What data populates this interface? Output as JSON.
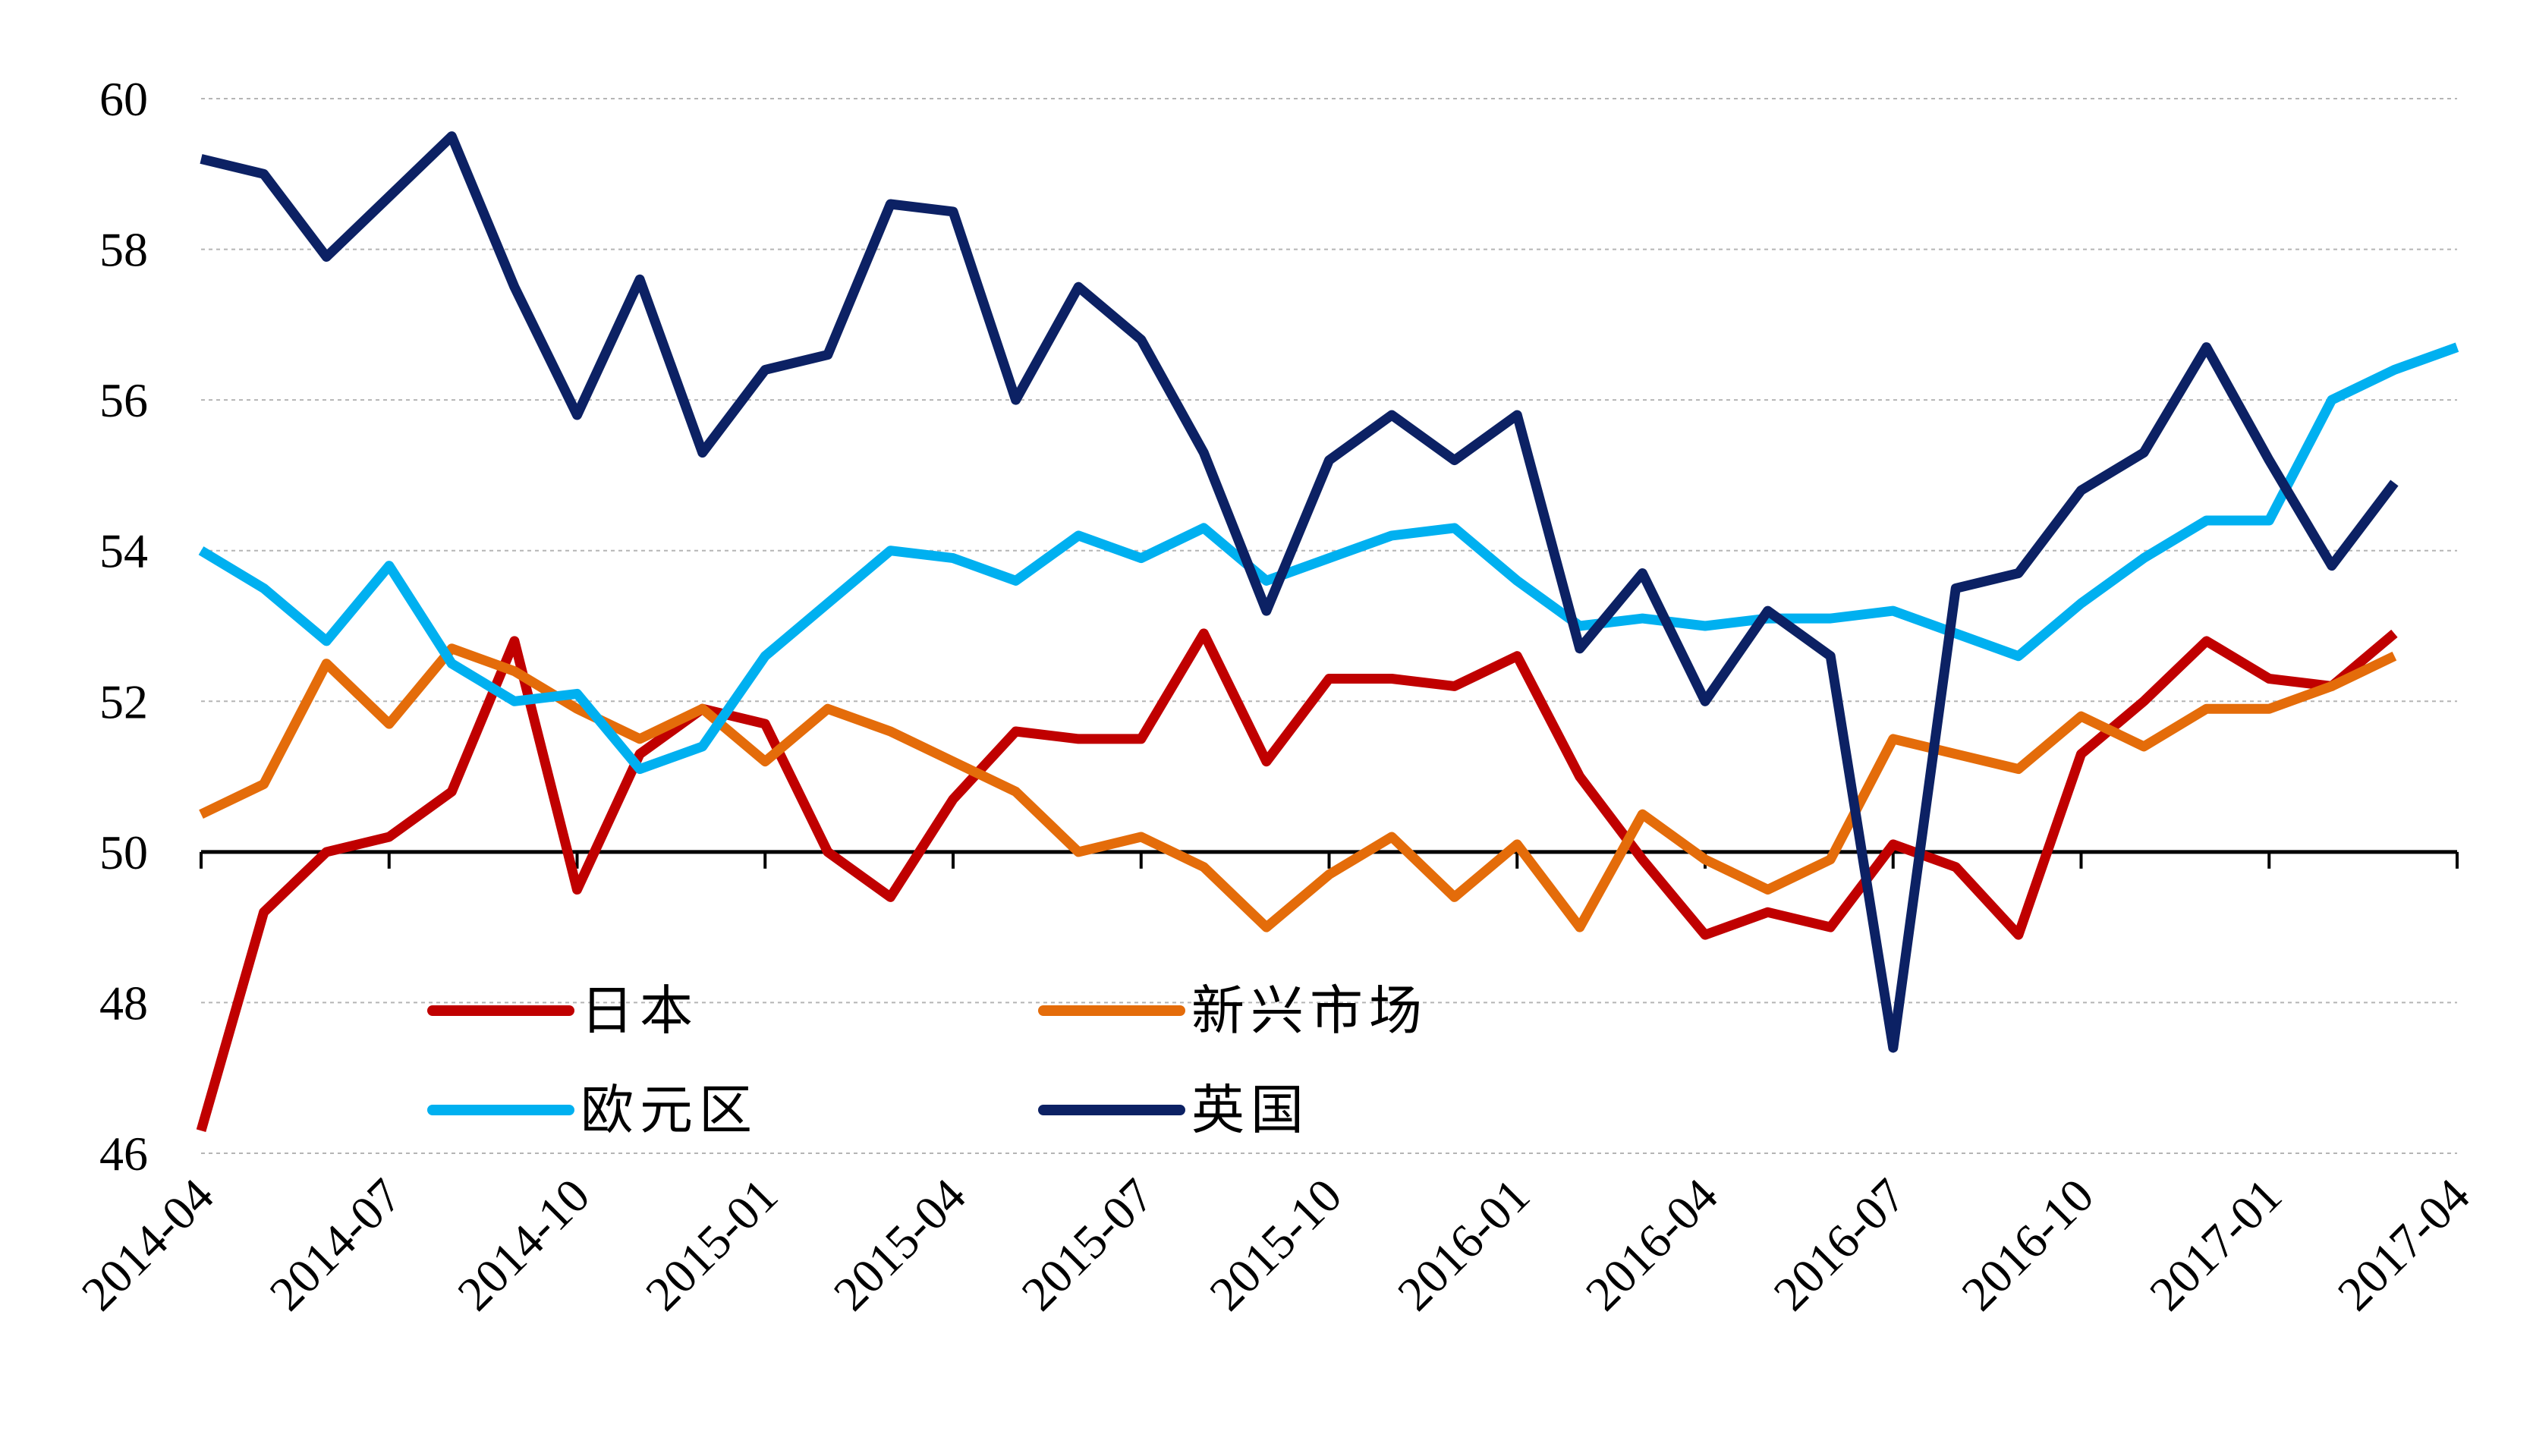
{
  "chart_data": {
    "type": "line",
    "title": "",
    "xlabel": "",
    "ylabel": "",
    "ylim": [
      46,
      60
    ],
    "yticks": [
      46,
      48,
      50,
      52,
      54,
      56,
      58,
      60
    ],
    "ytick_labels": [
      "46",
      "48",
      "50",
      "52",
      "54",
      "56",
      "58",
      "60"
    ],
    "reference_line": 50,
    "grid": "horizontal-dashed",
    "legend_position": "bottom-left",
    "x": [
      "2014-04",
      "2014-05",
      "2014-06",
      "2014-07",
      "2014-08",
      "2014-09",
      "2014-10",
      "2014-11",
      "2014-12",
      "2015-01",
      "2015-02",
      "2015-03",
      "2015-04",
      "2015-05",
      "2015-06",
      "2015-07",
      "2015-08",
      "2015-09",
      "2015-10",
      "2015-11",
      "2015-12",
      "2016-01",
      "2016-02",
      "2016-03",
      "2016-04",
      "2016-05",
      "2016-06",
      "2016-07",
      "2016-08",
      "2016-09",
      "2016-10",
      "2016-11",
      "2016-12",
      "2017-01",
      "2017-02",
      "2017-03",
      "2017-04"
    ],
    "xtick_labels": [
      "2014-04",
      "2014-07",
      "2014-10",
      "2015-01",
      "2015-04",
      "2015-07",
      "2015-10",
      "2016-01",
      "2016-04",
      "2016-07",
      "2016-10",
      "2017-01",
      "2017-04"
    ],
    "series": [
      {
        "name": "日本",
        "color": "#C00000",
        "values": [
          46.3,
          49.2,
          50.0,
          50.2,
          50.8,
          52.8,
          49.5,
          51.3,
          51.9,
          51.7,
          50.0,
          49.4,
          50.7,
          51.6,
          51.5,
          51.5,
          52.9,
          51.2,
          52.3,
          52.3,
          52.2,
          52.6,
          51.0,
          49.9,
          48.9,
          49.2,
          49.0,
          50.1,
          49.8,
          48.9,
          51.3,
          52.0,
          52.8,
          52.3,
          52.2,
          52.9,
          null
        ]
      },
      {
        "name": "新兴市场",
        "color": "#E46C0A",
        "values": [
          50.5,
          50.9,
          52.5,
          51.7,
          52.7,
          52.4,
          51.9,
          51.5,
          51.9,
          51.2,
          51.9,
          51.6,
          51.2,
          50.8,
          50.0,
          50.2,
          49.8,
          49.0,
          49.7,
          50.2,
          49.4,
          50.1,
          49.0,
          50.5,
          49.9,
          49.5,
          49.9,
          51.5,
          51.3,
          51.1,
          51.8,
          51.4,
          51.9,
          51.9,
          52.2,
          52.6,
          null
        ]
      },
      {
        "name": "欧元区",
        "color": "#00B0F0",
        "values": [
          54.0,
          53.5,
          52.8,
          53.8,
          52.5,
          52.0,
          52.1,
          51.1,
          51.4,
          52.6,
          53.3,
          54.0,
          53.9,
          53.6,
          54.2,
          53.9,
          54.3,
          53.6,
          53.9,
          54.2,
          54.3,
          53.6,
          53.0,
          53.1,
          53.0,
          53.1,
          53.1,
          53.2,
          52.9,
          52.6,
          53.3,
          53.9,
          54.4,
          54.4,
          56.0,
          56.4,
          56.7
        ]
      },
      {
        "name": "英国",
        "color": "#0C2164",
        "values": [
          59.2,
          59.0,
          57.9,
          58.7,
          59.5,
          57.5,
          55.8,
          57.6,
          55.3,
          56.4,
          56.6,
          58.6,
          58.5,
          56.0,
          57.5,
          56.8,
          55.3,
          53.2,
          55.2,
          55.8,
          55.2,
          55.8,
          52.7,
          53.7,
          52.0,
          53.2,
          52.6,
          47.4,
          53.5,
          53.7,
          54.8,
          55.3,
          56.7,
          55.2,
          53.8,
          54.9,
          null
        ]
      }
    ]
  }
}
